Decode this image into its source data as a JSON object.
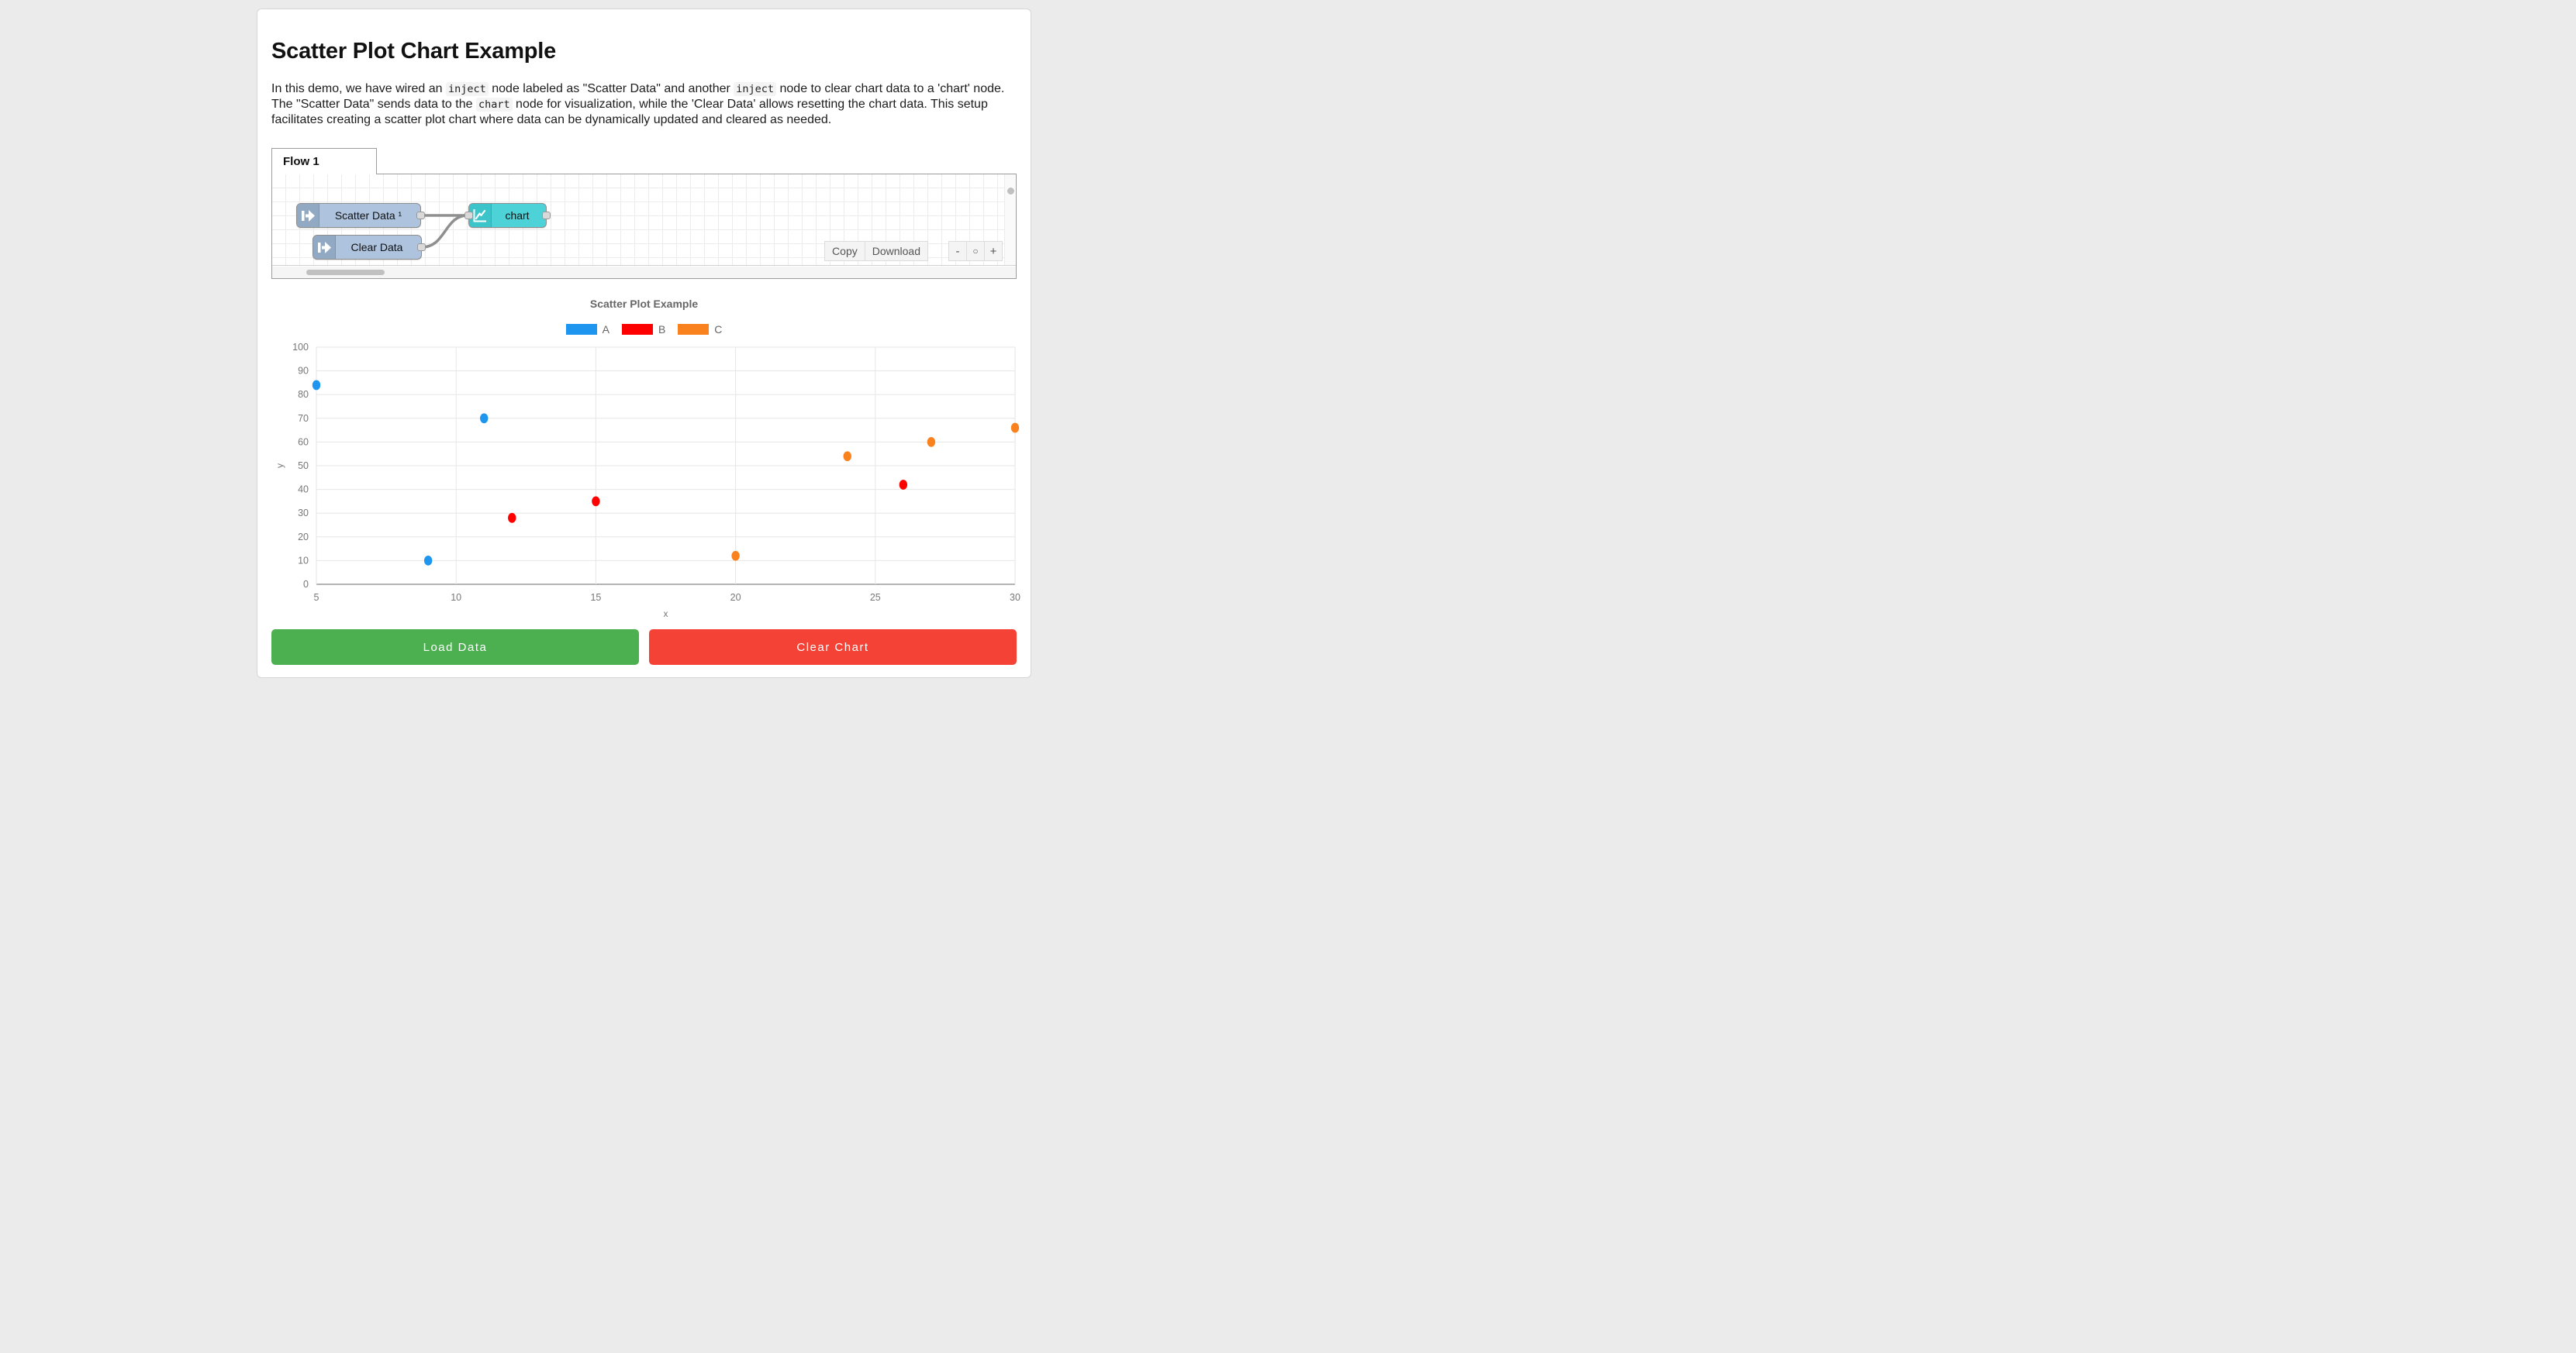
{
  "header": {
    "title": "Scatter Plot Chart Example"
  },
  "description": {
    "segments": [
      {
        "t": "text",
        "v": "In this demo, we have wired an "
      },
      {
        "t": "code",
        "v": "inject"
      },
      {
        "t": "text",
        "v": " node labeled as \"Scatter Data\" and another "
      },
      {
        "t": "code",
        "v": "inject"
      },
      {
        "t": "text",
        "v": " node to clear chart data to a 'chart' node. The \"Scatter Data\" sends data to the "
      },
      {
        "t": "code",
        "v": "chart"
      },
      {
        "t": "text",
        "v": " node for visualization, while the 'Clear Data' allows resetting the chart data. This setup facilitates creating a scatter plot chart where data can be dynamically updated and cleared as needed."
      }
    ]
  },
  "flow": {
    "tab_label": "Flow 1",
    "nodes": [
      {
        "label": "Scatter Data ¹",
        "type": "inject"
      },
      {
        "label": "Clear Data",
        "type": "inject"
      },
      {
        "label": "chart",
        "type": "chart"
      }
    ],
    "node_colors": {
      "inject": "#aec3dd",
      "chart": "#4dd2d8"
    },
    "toolbar": {
      "copy_label": "Copy",
      "download_label": "Download"
    },
    "zoom_controls": {
      "zoom_out": "-",
      "zoom_reset": "○",
      "zoom_in": "+"
    }
  },
  "chart_data": {
    "type": "scatter",
    "title": "Scatter Plot Example",
    "xlabel": "x",
    "ylabel": "y",
    "xlim": [
      5,
      30
    ],
    "ylim": [
      0,
      100
    ],
    "x_ticks": [
      5,
      10,
      15,
      20,
      25,
      30
    ],
    "y_ticks": [
      0,
      10,
      20,
      30,
      40,
      50,
      60,
      70,
      80,
      90,
      100
    ],
    "grid": true,
    "legend_position": "top",
    "series": [
      {
        "name": "A",
        "color": "#1e96f0",
        "points": [
          [
            5,
            84
          ],
          [
            9,
            10
          ],
          [
            11,
            70
          ]
        ]
      },
      {
        "name": "B",
        "color": "#ff0000",
        "points": [
          [
            12,
            28
          ],
          [
            15,
            35
          ],
          [
            26,
            42
          ]
        ]
      },
      {
        "name": "C",
        "color": "#f9821e",
        "points": [
          [
            20,
            12
          ],
          [
            24,
            54
          ],
          [
            27,
            60
          ],
          [
            30,
            66
          ]
        ]
      }
    ]
  },
  "actions": {
    "load_label": "Load Data",
    "load_color": "#4caf50",
    "clear_label": "Clear Chart",
    "clear_color": "#f44336"
  }
}
